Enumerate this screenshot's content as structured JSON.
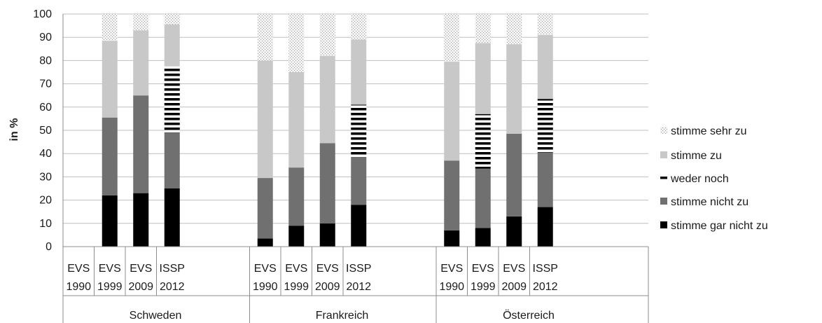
{
  "chart_data": {
    "type": "bar",
    "stacked": true,
    "ylabel": "in %",
    "ylim": [
      0,
      100
    ],
    "yticks": [
      0,
      10,
      20,
      30,
      40,
      50,
      60,
      70,
      80,
      90,
      100
    ],
    "grid": true,
    "legend_position": "right",
    "groups": [
      {
        "name": "Schweden",
        "categories": [
          {
            "line1": "EVS",
            "line2": "1990"
          },
          {
            "line1": "EVS",
            "line2": "1999"
          },
          {
            "line1": "EVS",
            "line2": "2009"
          },
          {
            "line1": "ISSP",
            "line2": "2012"
          }
        ]
      },
      {
        "name": "Frankreich",
        "categories": [
          {
            "line1": "EVS",
            "line2": "1990"
          },
          {
            "line1": "EVS",
            "line2": "1999"
          },
          {
            "line1": "EVS",
            "line2": "2009"
          },
          {
            "line1": "ISSP",
            "line2": "2012"
          }
        ]
      },
      {
        "name": "Österreich",
        "categories": [
          {
            "line1": "EVS",
            "line2": "1990"
          },
          {
            "line1": "EVS",
            "line2": "1999"
          },
          {
            "line1": "EVS",
            "line2": "2009"
          },
          {
            "line1": "ISSP",
            "line2": "2012"
          }
        ]
      }
    ],
    "series": [
      {
        "name": "stimme gar nicht zu",
        "color": "#000000",
        "pattern": "solid",
        "values": [
          null,
          22,
          23,
          25,
          3.5,
          9,
          10,
          18,
          7,
          8,
          13,
          17
        ]
      },
      {
        "name": "stimme nicht zu",
        "color": "#707070",
        "pattern": "solid",
        "values": [
          null,
          33.5,
          42,
          24,
          26,
          25,
          34.5,
          20.5,
          30,
          25.5,
          35.5,
          23.5
        ]
      },
      {
        "name": "weder noch",
        "color": "#000000",
        "pattern": "stripes",
        "values": [
          null,
          0,
          0,
          28.5,
          0,
          0,
          0,
          22.5,
          0,
          23.5,
          0,
          23
        ]
      },
      {
        "name": "stimme zu",
        "color": "#c8c8c8",
        "pattern": "solid",
        "values": [
          null,
          33,
          28,
          18,
          50.5,
          41,
          37.5,
          28,
          42.5,
          30.5,
          38.5,
          27.5
        ]
      },
      {
        "name": "stimme sehr zu",
        "color": "#d9d9d9",
        "pattern": "dots",
        "values": [
          null,
          11.5,
          7,
          4.5,
          20,
          25,
          18,
          11,
          20.5,
          12.5,
          13,
          9
        ]
      }
    ],
    "legend_order": [
      "stimme sehr zu",
      "stimme zu",
      "weder noch",
      "stimme nicht zu",
      "stimme gar nicht zu"
    ]
  }
}
